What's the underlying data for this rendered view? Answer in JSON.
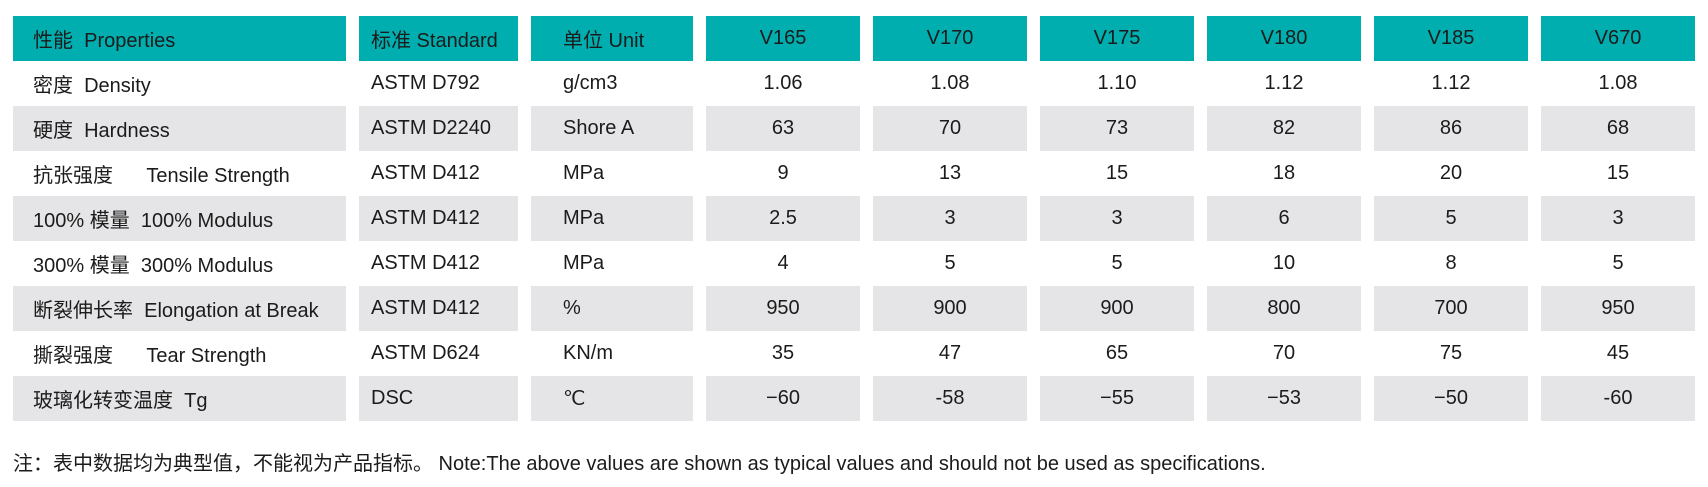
{
  "table": {
    "header": {
      "property": "性能  Properties",
      "standard": "标准 Standard",
      "unit": "单位 Unit",
      "grades": [
        "V165",
        "V170",
        "V175",
        "V180",
        "V185",
        "V670"
      ]
    },
    "rows": [
      {
        "property": "密度  Density",
        "standard": "ASTM D792",
        "unit": "g/cm3",
        "values": [
          "1.06",
          "1.08",
          "1.10",
          "1.12",
          "1.12",
          "1.08"
        ]
      },
      {
        "property": "硬度  Hardness",
        "standard": "ASTM D2240",
        "unit": "Shore A",
        "values": [
          "63",
          "70",
          "73",
          "82",
          "86",
          "68"
        ]
      },
      {
        "property": "抗张强度      Tensile Strength",
        "standard": "ASTM D412",
        "unit": "MPa",
        "values": [
          "9",
          "13",
          "15",
          "18",
          "20",
          "15"
        ]
      },
      {
        "property": "100% 模量  100% Modulus",
        "standard": "ASTM D412",
        "unit": "MPa",
        "values": [
          "2.5",
          "3",
          "3",
          "6",
          "5",
          "3"
        ]
      },
      {
        "property": "300% 模量  300% Modulus",
        "standard": "ASTM D412",
        "unit": "MPa",
        "values": [
          "4",
          "5",
          "5",
          "10",
          "8",
          "5"
        ]
      },
      {
        "property": "断裂伸长率  Elongation at Break",
        "standard": "ASTM D412",
        "unit": "%",
        "values": [
          "950",
          "900",
          "900",
          "800",
          "700",
          "950"
        ]
      },
      {
        "property": "撕裂强度      Tear Strength",
        "standard": "ASTM D624",
        "unit": "KN/m",
        "values": [
          "35",
          "47",
          "65",
          "70",
          "75",
          "45"
        ]
      },
      {
        "property": "玻璃化转变温度  Tg",
        "standard": "DSC",
        "unit": "℃",
        "values": [
          "−60",
          "-58",
          "−55",
          "−53",
          "−50",
          "-60"
        ]
      }
    ]
  },
  "note": "注：表中数据均为典型值，不能视为产品指标。 Note:The above values are shown as typical values and should not be used as specifications.",
  "colors": {
    "header_bg": "#00aeaf",
    "row_alt_bg": "#e5e5e7",
    "text": "#1b1b1b"
  }
}
